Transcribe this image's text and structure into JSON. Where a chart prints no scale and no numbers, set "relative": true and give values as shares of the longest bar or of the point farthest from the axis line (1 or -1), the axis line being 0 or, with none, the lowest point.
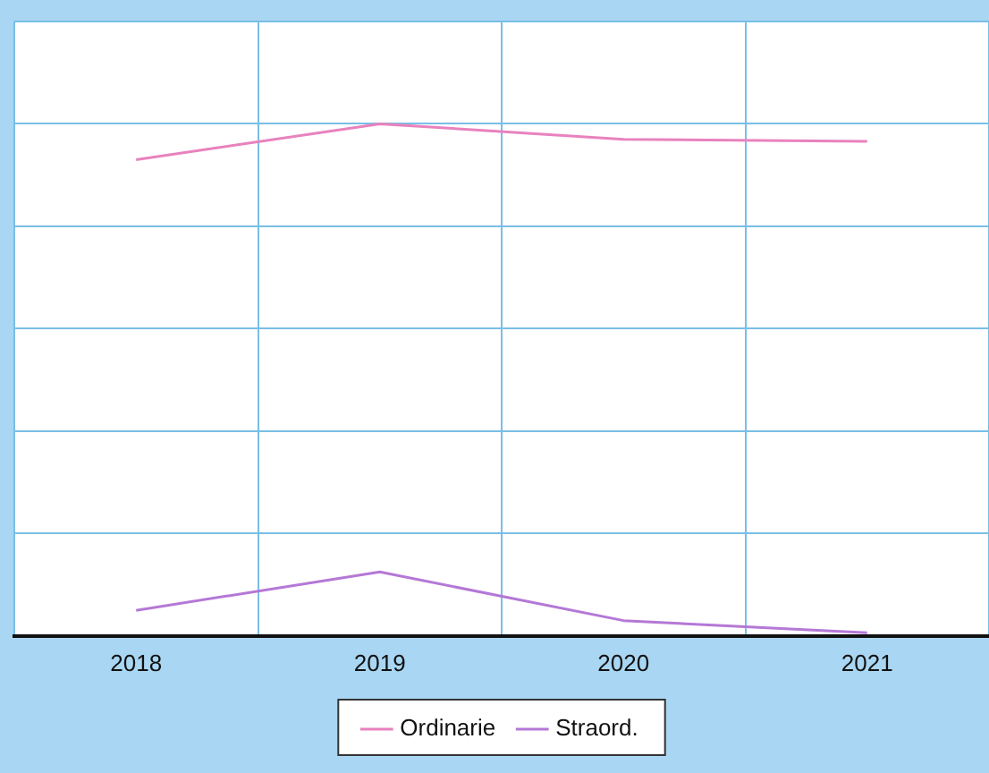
{
  "chart_data": {
    "type": "line",
    "relative": true,
    "categories": [
      "2018",
      "2019",
      "2020",
      "2021"
    ],
    "series": [
      {
        "name": "Ordinarie",
        "color": "#e882be",
        "values": [
          0.93,
          1,
          0.97,
          0.966
        ]
      },
      {
        "name": "Straord.",
        "color": "#b478d6",
        "values": [
          0.05,
          0.125,
          0.03,
          0.006
        ]
      }
    ],
    "grid": true,
    "legend": "bottom",
    "marker": "none"
  }
}
